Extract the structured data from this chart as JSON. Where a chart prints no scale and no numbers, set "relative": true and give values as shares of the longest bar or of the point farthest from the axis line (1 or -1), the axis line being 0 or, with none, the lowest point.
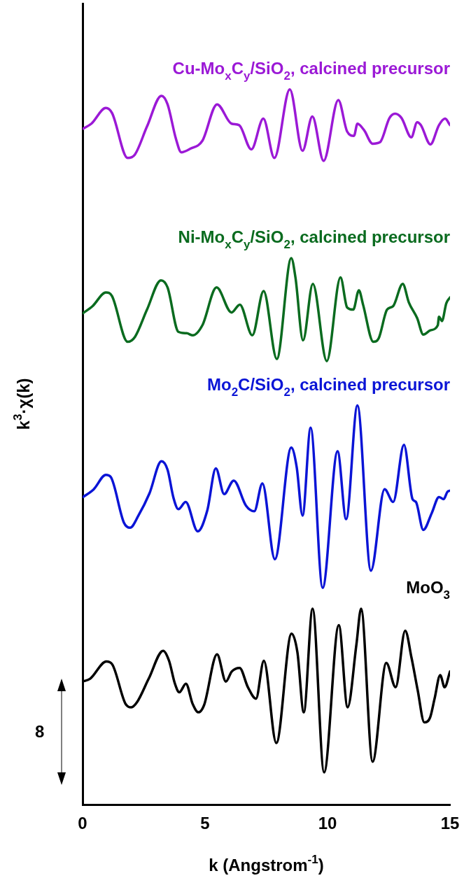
{
  "chart_data": {
    "type": "line",
    "xlabel": "k (Angstrom$^{-1}$)",
    "ylabel": "k$^{3}$·χ(k)",
    "xlim": [
      0,
      15
    ],
    "xticks": [
      0,
      5,
      10,
      15
    ],
    "relative": true,
    "tick_labels": "x",
    "grid": false,
    "legend": false,
    "marker": "none",
    "line_style": "solid",
    "annotations": [
      "8"
    ],
    "series": [
      {
        "name": "Cu-Mo$_{x}$C$_{y}$/SiO$_{2}$, calcined precursor",
        "color": "#9b19d6",
        "x": [
          0.02,
          0.36,
          0.95,
          1.2,
          1.84,
          2.14,
          2.63,
          3.22,
          3.47,
          3.81,
          4.03,
          4.4,
          4.89,
          5.49,
          6.08,
          6.39,
          6.89,
          7.38,
          7.83,
          8.46,
          8.98,
          9.38,
          9.84,
          10.44,
          10.8,
          11.08,
          11.22,
          11.49,
          11.84,
          12.14,
          12.53,
          12.76,
          13.02,
          13.42,
          13.66,
          13.81,
          14.2,
          14.55,
          14.8,
          15.0
        ],
        "values": [
          0.945,
          0.952,
          0.974,
          0.967,
          0.904,
          0.909,
          0.948,
          0.991,
          0.979,
          0.931,
          0.912,
          0.917,
          0.928,
          0.979,
          0.952,
          0.95,
          0.916,
          0.959,
          0.904,
          1,
          0.914,
          0.962,
          0.9,
          0.985,
          0.941,
          0.935,
          0.952,
          0.943,
          0.924,
          0.926,
          0.96,
          0.966,
          0.96,
          0.933,
          0.954,
          0.95,
          0.923,
          0.95,
          0.959,
          0.95
        ]
      },
      {
        "name": "Ni-Mo$_{x}$C$_{y}$/SiO$_{2}$, calcined precursor",
        "color": "#0a6b1f",
        "x": [
          0.02,
          0.41,
          0.95,
          1.2,
          1.84,
          2.14,
          2.63,
          3.2,
          3.47,
          3.91,
          4.25,
          4.5,
          4.89,
          5.47,
          6.08,
          6.42,
          6.93,
          7.39,
          7.93,
          8.52,
          8.69,
          9.0,
          9.4,
          9.97,
          10.53,
          10.8,
          11.05,
          11.28,
          11.45,
          11.87,
          12.09,
          12.43,
          12.68,
          13.07,
          13.32,
          13.66,
          13.91,
          14.2,
          14.5,
          14.55,
          14.67,
          14.85,
          15.0
        ],
        "values": [
          0.687,
          0.697,
          0.716,
          0.711,
          0.647,
          0.654,
          0.692,
          0.733,
          0.723,
          0.661,
          0.659,
          0.656,
          0.67,
          0.723,
          0.688,
          0.699,
          0.656,
          0.718,
          0.623,
          0.764,
          0.737,
          0.649,
          0.728,
          0.62,
          0.737,
          0.695,
          0.692,
          0.719,
          0.699,
          0.647,
          0.652,
          0.692,
          0.697,
          0.728,
          0.702,
          0.68,
          0.657,
          0.663,
          0.67,
          0.682,
          0.676,
          0.701,
          0.709
        ]
      },
      {
        "name": "Mo$_{2}$C/SiO$_{2}$, calcined precursor",
        "color": "#0a14d6",
        "x": [
          0.02,
          0.46,
          0.95,
          1.15,
          1.69,
          1.94,
          2.28,
          2.73,
          3.22,
          3.47,
          3.71,
          3.91,
          4.21,
          4.7,
          5.09,
          5.44,
          5.78,
          6.17,
          6.67,
          7.01,
          7.34,
          7.85,
          8.52,
          8.74,
          8.98,
          9.31,
          9.8,
          10.41,
          10.76,
          11.22,
          11.77,
          12.33,
          12.68,
          13.12,
          13.47,
          13.61,
          13.91,
          14.26,
          14.55,
          14.74,
          14.89,
          15.0
        ],
        "values": [
          0.43,
          0.441,
          0.461,
          0.458,
          0.394,
          0.387,
          0.404,
          0.435,
          0.48,
          0.468,
          0.429,
          0.413,
          0.423,
          0.382,
          0.411,
          0.47,
          0.434,
          0.453,
          0.418,
          0.41,
          0.449,
          0.343,
          0.499,
          0.472,
          0.404,
          0.527,
          0.303,
          0.494,
          0.399,
          0.558,
          0.327,
          0.441,
          0.423,
          0.503,
          0.427,
          0.423,
          0.384,
          0.408,
          0.43,
          0.427,
          0.437,
          0.439
        ]
      },
      {
        "name": "MoO$_{3}$",
        "color": "#000000",
        "x": [
          0.0,
          0.31,
          0.97,
          1.21,
          1.75,
          1.99,
          2.22,
          2.7,
          3.29,
          3.53,
          3.77,
          3.95,
          4.22,
          4.49,
          4.73,
          4.96,
          5.49,
          5.85,
          6.09,
          6.41,
          6.75,
          7.08,
          7.4,
          7.91,
          8.53,
          8.77,
          9.03,
          9.39,
          9.86,
          10.46,
          10.82,
          11.18,
          11.37,
          11.84,
          12.4,
          12.78,
          13.17,
          13.43,
          13.68,
          13.95,
          14.19,
          14.37,
          14.6,
          14.78,
          15.0
        ],
        "values": [
          0.172,
          0.176,
          0.2,
          0.196,
          0.141,
          0.136,
          0.143,
          0.176,
          0.215,
          0.201,
          0.169,
          0.157,
          0.169,
          0.141,
          0.129,
          0.139,
          0.21,
          0.172,
          0.186,
          0.191,
          0.164,
          0.148,
          0.201,
          0.086,
          0.239,
          0.213,
          0.129,
          0.274,
          0.045,
          0.251,
          0.136,
          0.224,
          0.274,
          0.06,
          0.198,
          0.164,
          0.243,
          0.205,
          0.16,
          0.115,
          0.122,
          0.148,
          0.181,
          0.164,
          0.186
        ]
      }
    ]
  }
}
